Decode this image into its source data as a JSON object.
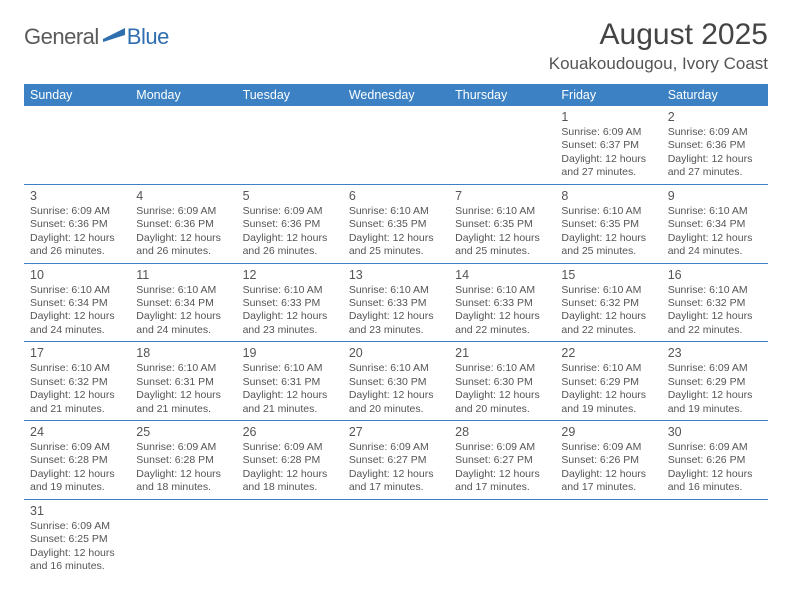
{
  "brand": {
    "name_a": "General",
    "name_b": "Blue"
  },
  "header": {
    "month_title": "August 2025",
    "location": "Kouakoudougou, Ivory Coast"
  },
  "colors": {
    "header_bg": "#3b81c3",
    "header_text": "#ffffff",
    "rule": "#3b81c3",
    "text": "#555555"
  },
  "daynames": [
    "Sunday",
    "Monday",
    "Tuesday",
    "Wednesday",
    "Thursday",
    "Friday",
    "Saturday"
  ],
  "weeks": [
    [
      null,
      null,
      null,
      null,
      null,
      {
        "n": "1",
        "sunrise": "Sunrise: 6:09 AM",
        "sunset": "Sunset: 6:37 PM",
        "day1": "Daylight: 12 hours",
        "day2": "and 27 minutes."
      },
      {
        "n": "2",
        "sunrise": "Sunrise: 6:09 AM",
        "sunset": "Sunset: 6:36 PM",
        "day1": "Daylight: 12 hours",
        "day2": "and 27 minutes."
      }
    ],
    [
      {
        "n": "3",
        "sunrise": "Sunrise: 6:09 AM",
        "sunset": "Sunset: 6:36 PM",
        "day1": "Daylight: 12 hours",
        "day2": "and 26 minutes."
      },
      {
        "n": "4",
        "sunrise": "Sunrise: 6:09 AM",
        "sunset": "Sunset: 6:36 PM",
        "day1": "Daylight: 12 hours",
        "day2": "and 26 minutes."
      },
      {
        "n": "5",
        "sunrise": "Sunrise: 6:09 AM",
        "sunset": "Sunset: 6:36 PM",
        "day1": "Daylight: 12 hours",
        "day2": "and 26 minutes."
      },
      {
        "n": "6",
        "sunrise": "Sunrise: 6:10 AM",
        "sunset": "Sunset: 6:35 PM",
        "day1": "Daylight: 12 hours",
        "day2": "and 25 minutes."
      },
      {
        "n": "7",
        "sunrise": "Sunrise: 6:10 AM",
        "sunset": "Sunset: 6:35 PM",
        "day1": "Daylight: 12 hours",
        "day2": "and 25 minutes."
      },
      {
        "n": "8",
        "sunrise": "Sunrise: 6:10 AM",
        "sunset": "Sunset: 6:35 PM",
        "day1": "Daylight: 12 hours",
        "day2": "and 25 minutes."
      },
      {
        "n": "9",
        "sunrise": "Sunrise: 6:10 AM",
        "sunset": "Sunset: 6:34 PM",
        "day1": "Daylight: 12 hours",
        "day2": "and 24 minutes."
      }
    ],
    [
      {
        "n": "10",
        "sunrise": "Sunrise: 6:10 AM",
        "sunset": "Sunset: 6:34 PM",
        "day1": "Daylight: 12 hours",
        "day2": "and 24 minutes."
      },
      {
        "n": "11",
        "sunrise": "Sunrise: 6:10 AM",
        "sunset": "Sunset: 6:34 PM",
        "day1": "Daylight: 12 hours",
        "day2": "and 24 minutes."
      },
      {
        "n": "12",
        "sunrise": "Sunrise: 6:10 AM",
        "sunset": "Sunset: 6:33 PM",
        "day1": "Daylight: 12 hours",
        "day2": "and 23 minutes."
      },
      {
        "n": "13",
        "sunrise": "Sunrise: 6:10 AM",
        "sunset": "Sunset: 6:33 PM",
        "day1": "Daylight: 12 hours",
        "day2": "and 23 minutes."
      },
      {
        "n": "14",
        "sunrise": "Sunrise: 6:10 AM",
        "sunset": "Sunset: 6:33 PM",
        "day1": "Daylight: 12 hours",
        "day2": "and 22 minutes."
      },
      {
        "n": "15",
        "sunrise": "Sunrise: 6:10 AM",
        "sunset": "Sunset: 6:32 PM",
        "day1": "Daylight: 12 hours",
        "day2": "and 22 minutes."
      },
      {
        "n": "16",
        "sunrise": "Sunrise: 6:10 AM",
        "sunset": "Sunset: 6:32 PM",
        "day1": "Daylight: 12 hours",
        "day2": "and 22 minutes."
      }
    ],
    [
      {
        "n": "17",
        "sunrise": "Sunrise: 6:10 AM",
        "sunset": "Sunset: 6:32 PM",
        "day1": "Daylight: 12 hours",
        "day2": "and 21 minutes."
      },
      {
        "n": "18",
        "sunrise": "Sunrise: 6:10 AM",
        "sunset": "Sunset: 6:31 PM",
        "day1": "Daylight: 12 hours",
        "day2": "and 21 minutes."
      },
      {
        "n": "19",
        "sunrise": "Sunrise: 6:10 AM",
        "sunset": "Sunset: 6:31 PM",
        "day1": "Daylight: 12 hours",
        "day2": "and 21 minutes."
      },
      {
        "n": "20",
        "sunrise": "Sunrise: 6:10 AM",
        "sunset": "Sunset: 6:30 PM",
        "day1": "Daylight: 12 hours",
        "day2": "and 20 minutes."
      },
      {
        "n": "21",
        "sunrise": "Sunrise: 6:10 AM",
        "sunset": "Sunset: 6:30 PM",
        "day1": "Daylight: 12 hours",
        "day2": "and 20 minutes."
      },
      {
        "n": "22",
        "sunrise": "Sunrise: 6:10 AM",
        "sunset": "Sunset: 6:29 PM",
        "day1": "Daylight: 12 hours",
        "day2": "and 19 minutes."
      },
      {
        "n": "23",
        "sunrise": "Sunrise: 6:09 AM",
        "sunset": "Sunset: 6:29 PM",
        "day1": "Daylight: 12 hours",
        "day2": "and 19 minutes."
      }
    ],
    [
      {
        "n": "24",
        "sunrise": "Sunrise: 6:09 AM",
        "sunset": "Sunset: 6:28 PM",
        "day1": "Daylight: 12 hours",
        "day2": "and 19 minutes."
      },
      {
        "n": "25",
        "sunrise": "Sunrise: 6:09 AM",
        "sunset": "Sunset: 6:28 PM",
        "day1": "Daylight: 12 hours",
        "day2": "and 18 minutes."
      },
      {
        "n": "26",
        "sunrise": "Sunrise: 6:09 AM",
        "sunset": "Sunset: 6:28 PM",
        "day1": "Daylight: 12 hours",
        "day2": "and 18 minutes."
      },
      {
        "n": "27",
        "sunrise": "Sunrise: 6:09 AM",
        "sunset": "Sunset: 6:27 PM",
        "day1": "Daylight: 12 hours",
        "day2": "and 17 minutes."
      },
      {
        "n": "28",
        "sunrise": "Sunrise: 6:09 AM",
        "sunset": "Sunset: 6:27 PM",
        "day1": "Daylight: 12 hours",
        "day2": "and 17 minutes."
      },
      {
        "n": "29",
        "sunrise": "Sunrise: 6:09 AM",
        "sunset": "Sunset: 6:26 PM",
        "day1": "Daylight: 12 hours",
        "day2": "and 17 minutes."
      },
      {
        "n": "30",
        "sunrise": "Sunrise: 6:09 AM",
        "sunset": "Sunset: 6:26 PM",
        "day1": "Daylight: 12 hours",
        "day2": "and 16 minutes."
      }
    ],
    [
      {
        "n": "31",
        "sunrise": "Sunrise: 6:09 AM",
        "sunset": "Sunset: 6:25 PM",
        "day1": "Daylight: 12 hours",
        "day2": "and 16 minutes."
      },
      null,
      null,
      null,
      null,
      null,
      null
    ]
  ]
}
